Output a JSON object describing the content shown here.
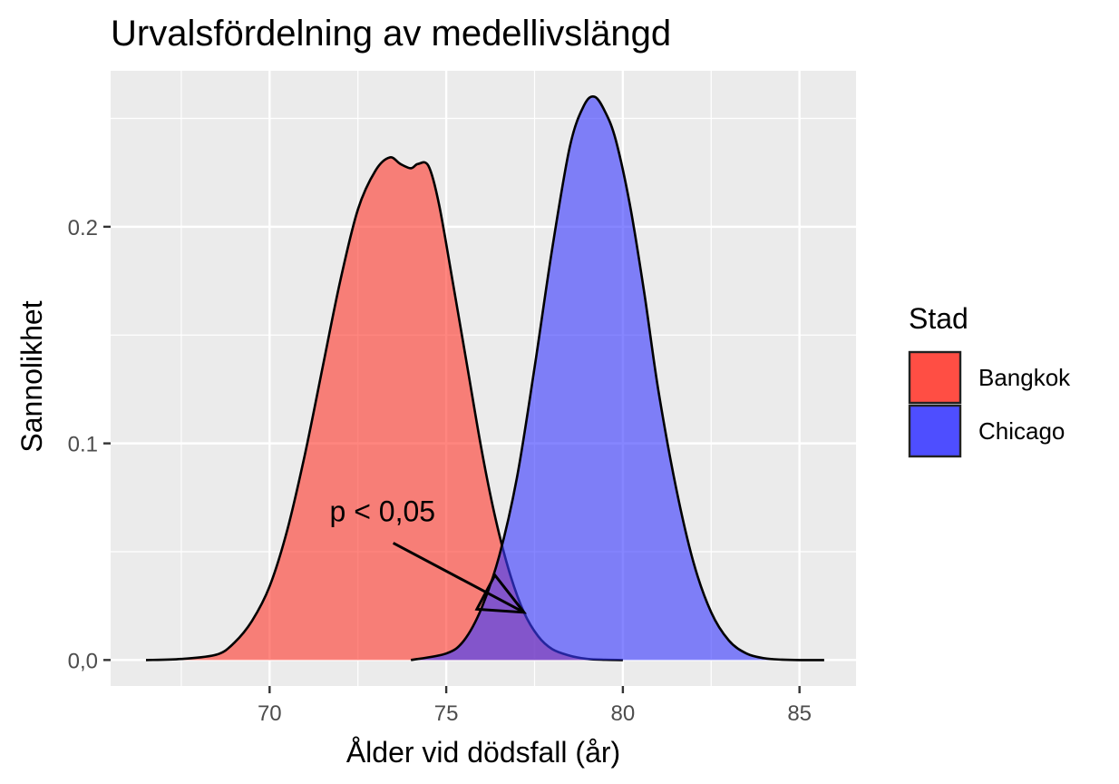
{
  "chart_data": {
    "type": "area",
    "title": "Urvalsfördelning av medellivslängd",
    "xlabel": "Ålder vid dödsfall (år)",
    "ylabel": "Sannolikhet",
    "xlim": [
      65.5,
      86.6
    ],
    "ylim": [
      -0.012,
      0.272
    ],
    "x_ticks": [
      70,
      75,
      80,
      85
    ],
    "x_tick_labels": [
      "70",
      "75",
      "80",
      "85"
    ],
    "y_ticks": [
      0.0,
      0.1,
      0.2
    ],
    "y_tick_labels": [
      "0,0",
      "0.1",
      "0.2"
    ],
    "grid": true,
    "legend": {
      "title": "Stad",
      "position": "right"
    },
    "series": [
      {
        "name": "Bangkok",
        "color": "#f8766d",
        "fill": "#ff3b30",
        "x": [
          66.5,
          67.5,
          68.5,
          69.0,
          69.5,
          70.0,
          70.5,
          71.0,
          71.5,
          72.0,
          72.5,
          73.0,
          73.4,
          73.7,
          74.0,
          74.2,
          74.5,
          74.8,
          75.2,
          75.6,
          76.0,
          76.4,
          76.8,
          77.2,
          77.6,
          78.0,
          78.5,
          79.0,
          79.5,
          80.0
        ],
        "values": [
          0.0,
          0.0005,
          0.0025,
          0.008,
          0.018,
          0.034,
          0.06,
          0.095,
          0.135,
          0.175,
          0.208,
          0.226,
          0.232,
          0.229,
          0.227,
          0.229,
          0.228,
          0.21,
          0.173,
          0.135,
          0.097,
          0.065,
          0.04,
          0.022,
          0.011,
          0.005,
          0.002,
          0.0005,
          0.0001,
          0.0
        ]
      },
      {
        "name": "Chicago",
        "color": "#619cff",
        "fill": "#3b3bff",
        "x": [
          74.0,
          75.0,
          75.5,
          76.0,
          76.5,
          77.0,
          77.5,
          78.0,
          78.5,
          78.9,
          79.2,
          79.5,
          79.8,
          80.2,
          80.6,
          81.0,
          81.5,
          82.0,
          82.5,
          83.0,
          83.5,
          84.0,
          84.5,
          85.0,
          85.7
        ],
        "values": [
          0.0,
          0.003,
          0.009,
          0.024,
          0.048,
          0.084,
          0.135,
          0.19,
          0.237,
          0.256,
          0.26,
          0.253,
          0.24,
          0.21,
          0.17,
          0.125,
          0.08,
          0.045,
          0.022,
          0.009,
          0.003,
          0.0008,
          0.0002,
          0.0,
          0.0
        ]
      }
    ],
    "annotations": [
      {
        "text": "p < 0,05",
        "x": 71.7,
        "y": 0.064,
        "arrow_from": [
          73.5,
          0.054
        ],
        "arrow_to": [
          77.2,
          0.022
        ]
      }
    ]
  }
}
